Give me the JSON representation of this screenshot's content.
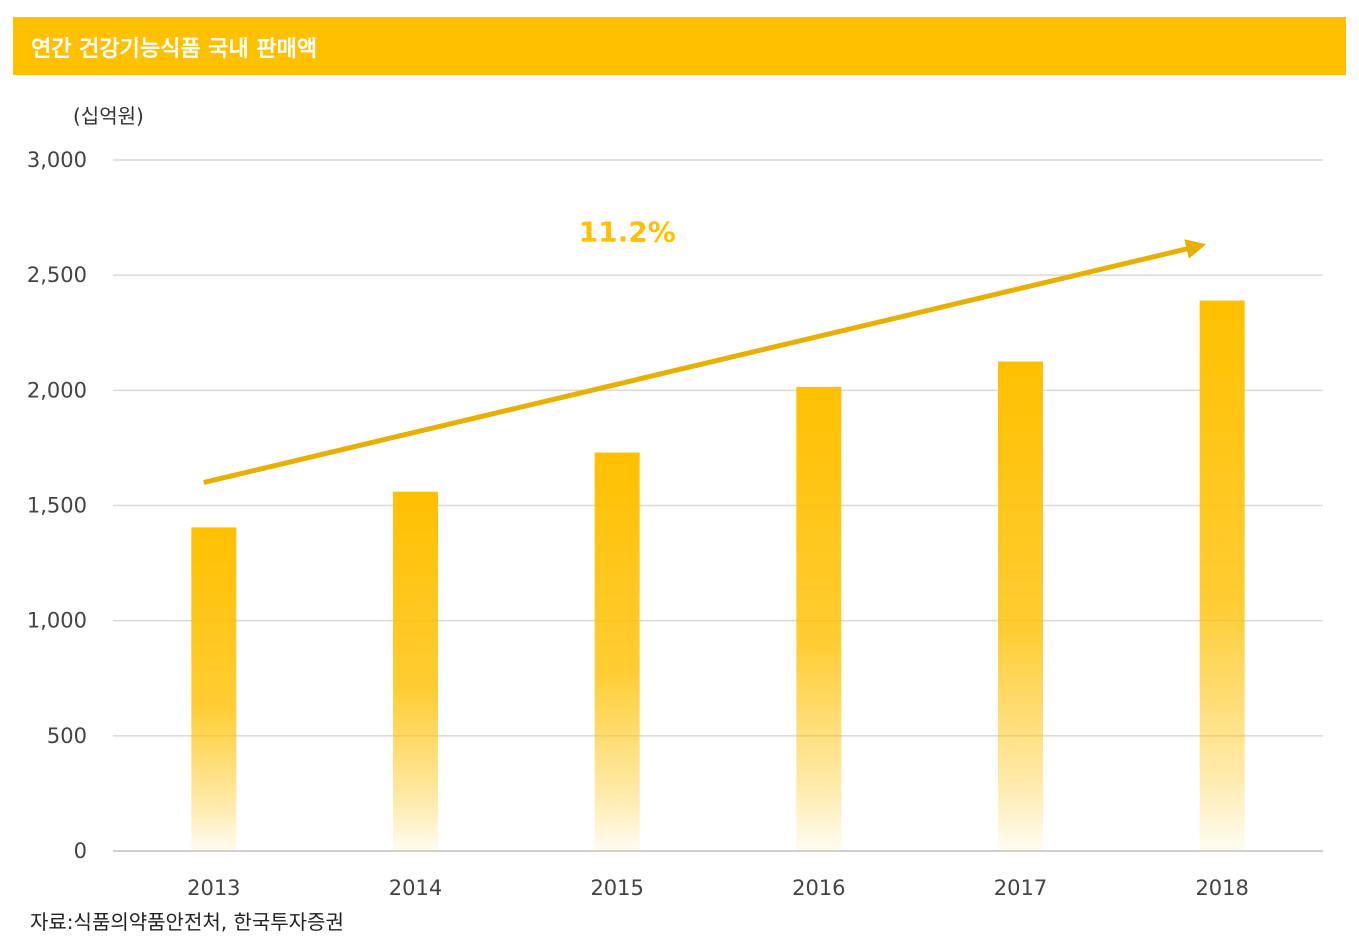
{
  "header": {
    "title": "연간 건강기능식품 국내 판매액"
  },
  "unit_label": "(십억원)",
  "source": "자료:식품의약품안전처, 한국투자증권",
  "colors": {
    "bar": "#FFC000",
    "arrow": "#E6B000",
    "grid": "#D9D9D9",
    "title_bg": "#FFC000"
  },
  "chart_data": {
    "type": "bar",
    "title": "연간 건강기능식품 국내 판매액",
    "ylabel": "(십억원)",
    "xlabel": "",
    "categories": [
      "2013",
      "2014",
      "2015",
      "2016",
      "2017",
      "2018"
    ],
    "values": [
      1405,
      1560,
      1730,
      2015,
      2125,
      2390
    ],
    "ylim": [
      0,
      3000
    ],
    "yticks": [
      0,
      500,
      1000,
      1500,
      2000,
      2500,
      3000
    ],
    "ytick_labels": [
      "0",
      "500",
      "1,000",
      "1,500",
      "2,000",
      "2,500",
      "3,000"
    ],
    "grid": true,
    "annotation": {
      "text": "11.2%",
      "trend_from": 1600,
      "trend_to": 2630
    }
  }
}
